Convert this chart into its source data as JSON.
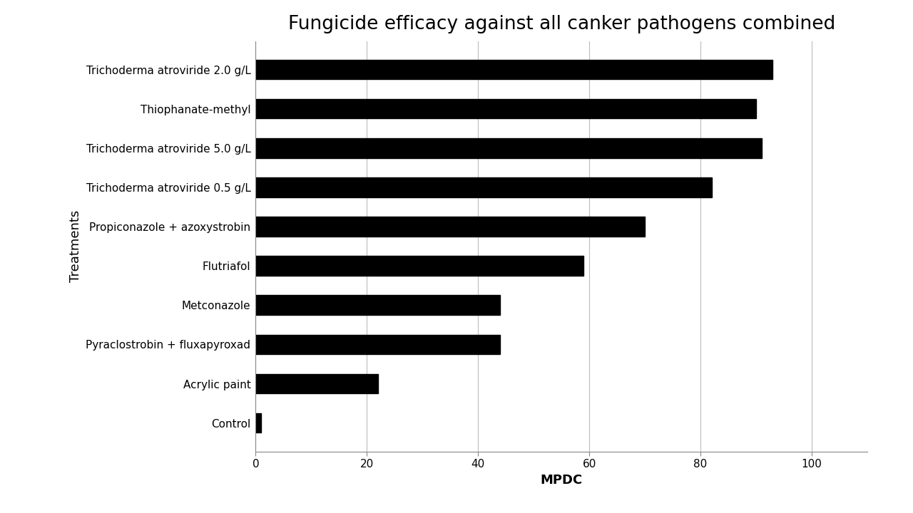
{
  "title": "Fungicide efficacy against all canker pathogens combined",
  "xlabel": "MPDC",
  "ylabel": "Treatments",
  "categories": [
    "Trichoderma atroviride 2.0 g/L",
    "Thiophanate-methyl",
    "Trichoderma atroviride 5.0 g/L",
    "Trichoderma atroviride 0.5 g/L",
    "Propiconazole + azoxystrobin",
    "Flutriafol",
    "Metconazole",
    "Pyraclostrobin + fluxapyroxad",
    "Acrylic paint",
    "Control"
  ],
  "values": [
    93,
    90,
    91,
    82,
    70,
    59,
    44,
    44,
    22,
    1
  ],
  "bar_color": "#000000",
  "background_color": "#ffffff",
  "xlim": [
    0,
    110
  ],
  "xticks": [
    0,
    20,
    40,
    60,
    80,
    100
  ],
  "title_fontsize": 19,
  "axis_label_fontsize": 13,
  "tick_fontsize": 11,
  "bar_height": 0.5,
  "grid_color": "#bbbbbb",
  "grid_linewidth": 0.8
}
